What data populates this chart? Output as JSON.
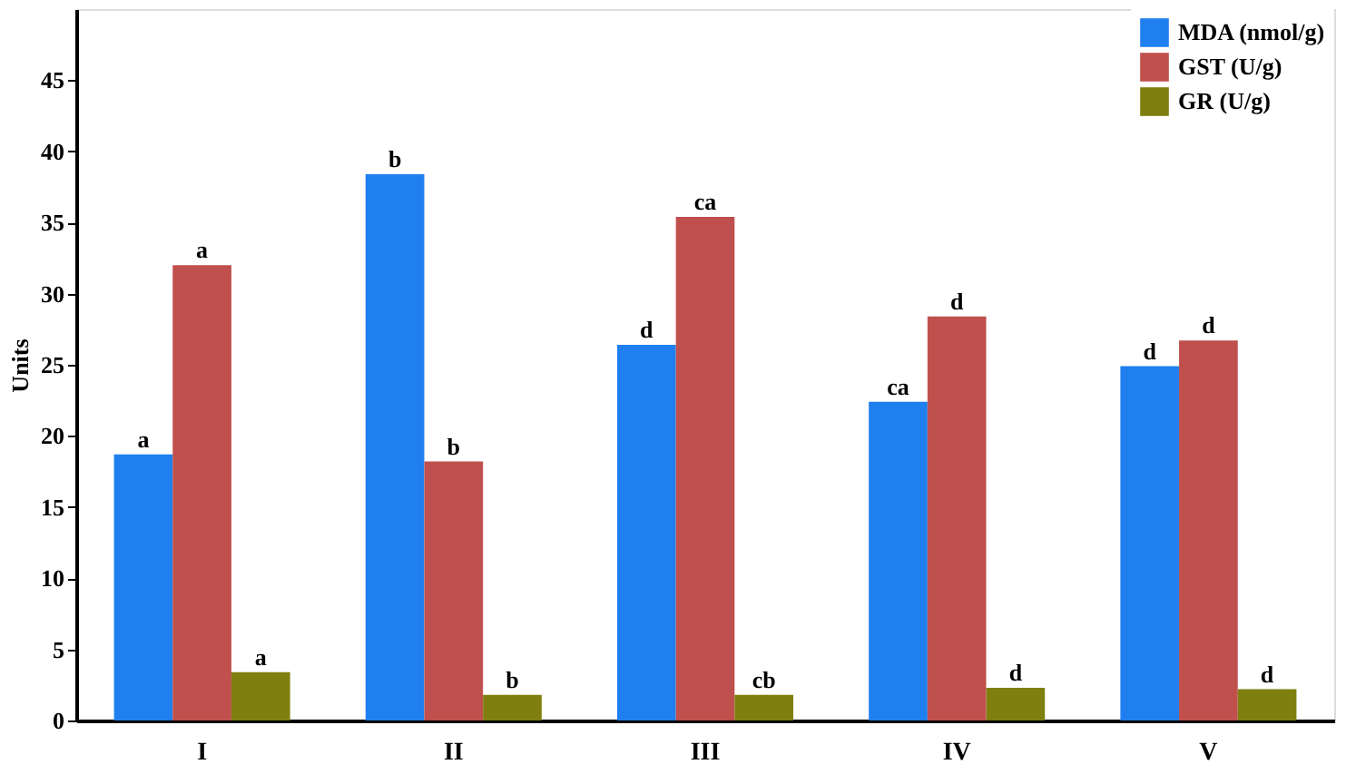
{
  "chart_data": {
    "type": "bar",
    "ylabel": "Units",
    "categories": [
      "I",
      "II",
      "III",
      "IV",
      "V"
    ],
    "series": [
      {
        "name": "MDA (nmol/g)",
        "color": "#1f7fef",
        "values": [
          18.7,
          38.4,
          26.4,
          22.4,
          24.9
        ],
        "value_labels": [
          "a",
          "b",
          "d",
          "ca",
          "d"
        ]
      },
      {
        "name": "GST (U/g)",
        "color": "#c0504d",
        "values": [
          32.0,
          18.2,
          35.4,
          28.4,
          26.7
        ],
        "value_labels": [
          "a",
          "b",
          "ca",
          "d",
          "d"
        ]
      },
      {
        "name": "GR (U/g)",
        "color": "#7f7f0f",
        "values": [
          3.4,
          1.8,
          1.8,
          2.3,
          2.2
        ],
        "value_labels": [
          "a",
          "b",
          "cb",
          "d",
          "d"
        ]
      }
    ],
    "ylim": [
      0,
      50
    ],
    "yticks": [
      0,
      5,
      10,
      15,
      20,
      25,
      30,
      35,
      40,
      45
    ],
    "grid": false,
    "legend": "top right"
  }
}
